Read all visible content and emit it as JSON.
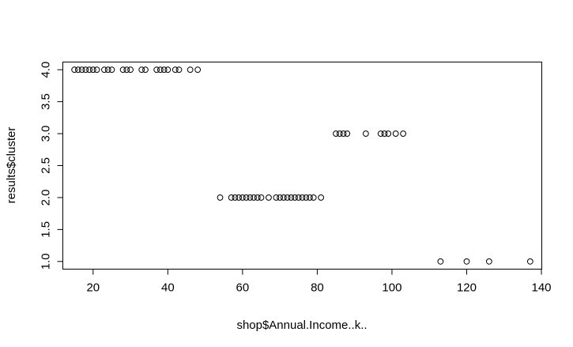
{
  "chart_data": {
    "type": "scatter",
    "xlabel": "shop$Annual.Income..k..",
    "ylabel": "results$cluster",
    "xlim": [
      11.9,
      140.1
    ],
    "ylim": [
      0.88,
      4.12
    ],
    "x_ticks": [
      20,
      40,
      60,
      80,
      100,
      120,
      140
    ],
    "y_ticks": [
      1.0,
      1.5,
      2.0,
      2.5,
      3.0,
      3.5,
      4.0
    ],
    "x_tick_labels": [
      "20",
      "40",
      "60",
      "80",
      "100",
      "120",
      "140"
    ],
    "y_tick_labels": [
      "1.0",
      "1.5",
      "2.0",
      "2.5",
      "3.0",
      "3.5",
      "4.0"
    ],
    "grid": false,
    "point_style": "open-circle",
    "points": [
      {
        "x": 15,
        "y": 4
      },
      {
        "x": 16,
        "y": 4
      },
      {
        "x": 17,
        "y": 4
      },
      {
        "x": 18,
        "y": 4
      },
      {
        "x": 19,
        "y": 4
      },
      {
        "x": 20,
        "y": 4
      },
      {
        "x": 21,
        "y": 4
      },
      {
        "x": 23,
        "y": 4
      },
      {
        "x": 24,
        "y": 4
      },
      {
        "x": 25,
        "y": 4
      },
      {
        "x": 28,
        "y": 4
      },
      {
        "x": 29,
        "y": 4
      },
      {
        "x": 30,
        "y": 4
      },
      {
        "x": 33,
        "y": 4
      },
      {
        "x": 34,
        "y": 4
      },
      {
        "x": 37,
        "y": 4
      },
      {
        "x": 38,
        "y": 4
      },
      {
        "x": 39,
        "y": 4
      },
      {
        "x": 40,
        "y": 4
      },
      {
        "x": 42,
        "y": 4
      },
      {
        "x": 43,
        "y": 4
      },
      {
        "x": 46,
        "y": 4
      },
      {
        "x": 48,
        "y": 4
      },
      {
        "x": 54,
        "y": 2
      },
      {
        "x": 57,
        "y": 2
      },
      {
        "x": 58,
        "y": 2
      },
      {
        "x": 59,
        "y": 2
      },
      {
        "x": 60,
        "y": 2
      },
      {
        "x": 61,
        "y": 2
      },
      {
        "x": 62,
        "y": 2
      },
      {
        "x": 63,
        "y": 2
      },
      {
        "x": 64,
        "y": 2
      },
      {
        "x": 65,
        "y": 2
      },
      {
        "x": 67,
        "y": 2
      },
      {
        "x": 69,
        "y": 2
      },
      {
        "x": 70,
        "y": 2
      },
      {
        "x": 71,
        "y": 2
      },
      {
        "x": 72,
        "y": 2
      },
      {
        "x": 73,
        "y": 2
      },
      {
        "x": 74,
        "y": 2
      },
      {
        "x": 75,
        "y": 2
      },
      {
        "x": 76,
        "y": 2
      },
      {
        "x": 77,
        "y": 2
      },
      {
        "x": 78,
        "y": 2
      },
      {
        "x": 79,
        "y": 2
      },
      {
        "x": 81,
        "y": 2
      },
      {
        "x": 85,
        "y": 3
      },
      {
        "x": 86,
        "y": 3
      },
      {
        "x": 87,
        "y": 3
      },
      {
        "x": 88,
        "y": 3
      },
      {
        "x": 93,
        "y": 3
      },
      {
        "x": 97,
        "y": 3
      },
      {
        "x": 98,
        "y": 3
      },
      {
        "x": 99,
        "y": 3
      },
      {
        "x": 101,
        "y": 3
      },
      {
        "x": 103,
        "y": 3
      },
      {
        "x": 113,
        "y": 1
      },
      {
        "x": 120,
        "y": 1
      },
      {
        "x": 126,
        "y": 1
      },
      {
        "x": 137,
        "y": 1
      }
    ]
  }
}
